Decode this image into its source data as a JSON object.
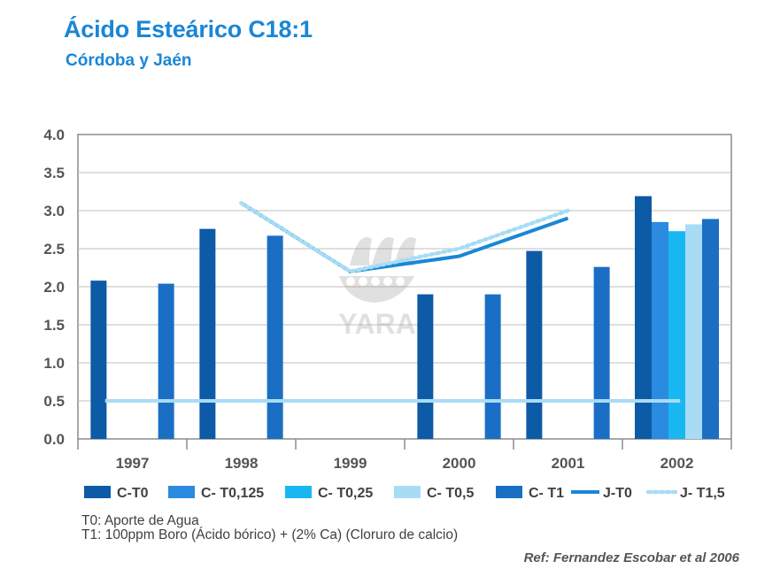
{
  "title": "Ácido Esteárico C18:1",
  "subtitle": "Córdoba y Jaén",
  "watermark_text": "YARA",
  "notes": [
    "T0: Aporte de Agua",
    "T1: 100ppm Boro (Ácido bórico) + (2% Ca) (Cloruro de calcio)"
  ],
  "reference": "Ref: Fernandez  Escobar et al 2006",
  "chart_data": {
    "type": "bar",
    "categories": [
      "1997",
      "1998",
      "1999",
      "2000",
      "2001",
      "2002"
    ],
    "ylim": [
      0,
      4.0
    ],
    "yticks": [
      "0.0",
      "0.5",
      "1.0",
      "1.5",
      "2.0",
      "2.5",
      "3.0",
      "3.5",
      "4.0"
    ],
    "grid": true,
    "legend_position": "bottom",
    "series": [
      {
        "name": "C-T0",
        "kind": "bar",
        "color": "#0d5aa7",
        "values": [
          2.08,
          2.76,
          null,
          1.9,
          2.47,
          3.19
        ]
      },
      {
        "name": "C- T0,125",
        "kind": "bar",
        "color": "#2a8be0",
        "values": [
          null,
          null,
          null,
          null,
          null,
          2.85
        ]
      },
      {
        "name": "C- T0,25",
        "kind": "bar",
        "color": "#19b7f2",
        "values": [
          null,
          null,
          null,
          null,
          null,
          2.73
        ]
      },
      {
        "name": "C- T0,5",
        "kind": "bar",
        "color": "#a8dcf5",
        "values": [
          null,
          null,
          null,
          null,
          null,
          2.82
        ]
      },
      {
        "name": "C- T1",
        "kind": "bar",
        "color": "#1a6fc4",
        "values": [
          2.04,
          2.67,
          null,
          1.9,
          2.26,
          2.89
        ]
      },
      {
        "name": "J-T0",
        "kind": "line",
        "color": "#1a86d6",
        "values": [
          null,
          3.1,
          2.2,
          2.4,
          2.9,
          null
        ]
      },
      {
        "name": "J- T1,5",
        "kind": "line-dotted",
        "color": "#a8dcf5",
        "values": [
          null,
          3.1,
          2.2,
          2.5,
          3.0,
          null
        ]
      },
      {
        "name": "",
        "kind": "hline",
        "color": "#a8dcf5",
        "value": 0.5,
        "range": [
          "1997",
          "2002"
        ]
      }
    ]
  }
}
